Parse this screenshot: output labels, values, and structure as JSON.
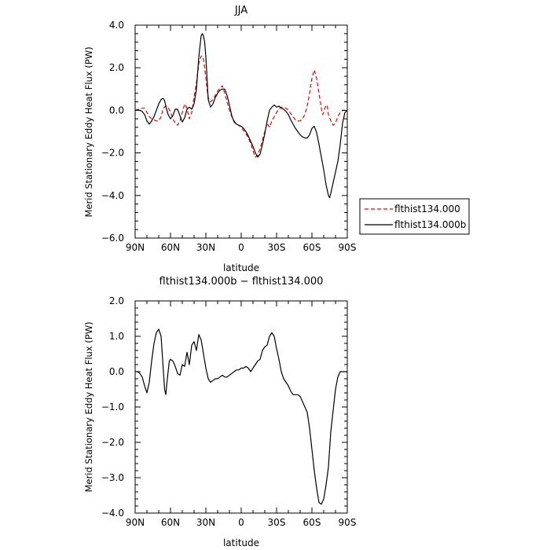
{
  "chart_data": [
    {
      "type": "line",
      "title": "JJA",
      "xlabel": "latitude",
      "ylabel": "Merid Stationary Eddy Heat Flux (PW)",
      "xlim": [
        90,
        -90
      ],
      "ylim": [
        -6,
        4
      ],
      "x_ticks": [
        90,
        60,
        30,
        0,
        -30,
        -60,
        -90
      ],
      "x_tick_labels": [
        "90N",
        "60N",
        "30N",
        "0",
        "30S",
        "60S",
        "90S"
      ],
      "y_ticks": [
        4,
        2,
        0,
        -2,
        -4,
        -6
      ],
      "y_tick_labels": [
        "4.0",
        "2.0",
        "0.0",
        "−2.0",
        "−4.0",
        "−6.0"
      ],
      "legend_position": "right",
      "series": [
        {
          "name": "flthist134.000",
          "color": "#ff0000",
          "dash": "dashed",
          "x": [
            90,
            87,
            84,
            82,
            80,
            78,
            76,
            74,
            72,
            70,
            68,
            66,
            64,
            62,
            60,
            58,
            56,
            54,
            52,
            50,
            48,
            46,
            44,
            42,
            40,
            38,
            36,
            34,
            33,
            32,
            31,
            30,
            29,
            28,
            26,
            24,
            22,
            20,
            18,
            16,
            14,
            12,
            10,
            8,
            6,
            4,
            2,
            0,
            -2,
            -4,
            -6,
            -8,
            -10,
            -12,
            -14,
            -16,
            -18,
            -20,
            -22,
            -24,
            -26,
            -28,
            -30,
            -32,
            -34,
            -36,
            -38,
            -40,
            -42,
            -44,
            -46,
            -48,
            -50,
            -52,
            -54,
            -56,
            -58,
            -60,
            -62,
            -64,
            -66,
            -68,
            -69,
            -70,
            -71,
            -72,
            -73,
            -74,
            -76,
            -78,
            -80,
            -82,
            -84,
            -86,
            -88,
            -90
          ],
          "y": [
            0,
            0.05,
            0.1,
            0.1,
            -0.1,
            -0.3,
            -0.4,
            -0.45,
            -0.5,
            -0.5,
            -0.3,
            0.1,
            0.2,
            0.15,
            -0.1,
            -0.4,
            -0.6,
            -0.7,
            -0.5,
            -0.1,
            0.3,
            0.1,
            -0.4,
            -0.1,
            0.6,
            1.3,
            2.2,
            2.55,
            2.55,
            2.4,
            2.0,
            1.5,
            1.0,
            0.6,
            0.4,
            0.5,
            0.7,
            0.9,
            1.05,
            1.15,
            0.8,
            0.4,
            0.0,
            -0.3,
            -0.5,
            -0.65,
            -0.7,
            -0.8,
            -0.95,
            -1.1,
            -1.3,
            -1.55,
            -1.9,
            -2.2,
            -2.1,
            -1.8,
            -1.4,
            -1.0,
            -0.6,
            -0.8,
            -0.5,
            -0.3,
            -0.1,
            0.05,
            0.15,
            0.15,
            0.1,
            0,
            -0.15,
            -0.3,
            -0.45,
            -0.5,
            -0.5,
            -0.4,
            -0.2,
            0.2,
            0.8,
            1.5,
            1.9,
            1.5,
            0.8,
            0.1,
            -0.2,
            -0.1,
            0.1,
            0.25,
            0.2,
            -0.2,
            -0.5,
            -0.7,
            -0.6,
            -0.3,
            -0.1,
            0,
            0,
            0
          ]
        },
        {
          "name": "flthist134.000b",
          "color": "#000000",
          "dash": "solid",
          "x": [
            90,
            88,
            86,
            84,
            82,
            80,
            78,
            76,
            74,
            72,
            70,
            68,
            67,
            66,
            65,
            64,
            62,
            60,
            58,
            56,
            54,
            52,
            50,
            48,
            46,
            44,
            42,
            40,
            38,
            36,
            34,
            33,
            32,
            31,
            30,
            29,
            28,
            26,
            24,
            22,
            20,
            18,
            16,
            14,
            12,
            10,
            8,
            6,
            4,
            2,
            0,
            -2,
            -4,
            -6,
            -8,
            -10,
            -12,
            -14,
            -16,
            -18,
            -20,
            -22,
            -24,
            -26,
            -28,
            -30,
            -32,
            -34,
            -36,
            -38,
            -40,
            -42,
            -44,
            -46,
            -48,
            -50,
            -52,
            -54,
            -56,
            -58,
            -60,
            -62,
            -64,
            -66,
            -68,
            -70,
            -72,
            -74,
            -75,
            -76,
            -78,
            -80,
            -82,
            -84,
            -86,
            -88,
            -90
          ],
          "y": [
            0,
            0,
            0,
            -0.05,
            -0.2,
            -0.5,
            -0.65,
            -0.5,
            -0.3,
            0,
            0.3,
            0.5,
            0.55,
            0.55,
            0.45,
            0.2,
            -0.2,
            -0.4,
            -0.25,
            0.05,
            0.05,
            -0.25,
            -0.55,
            -0.35,
            0.05,
            0.15,
            0.05,
            0.3,
            1.0,
            2.5,
            3.5,
            3.6,
            3.5,
            3.2,
            2.5,
            1.5,
            0.5,
            0.15,
            0.3,
            0.6,
            0.8,
            0.95,
            1.0,
            1.0,
            0.7,
            0.25,
            -0.25,
            -0.55,
            -0.65,
            -0.7,
            -0.75,
            -0.85,
            -1.0,
            -1.2,
            -1.45,
            -1.7,
            -2.0,
            -2.2,
            -2.05,
            -1.6,
            -1.1,
            -0.5,
            0.0,
            0.15,
            0.25,
            0.15,
            0.2,
            0.1,
            0.05,
            -0.05,
            -0.2,
            -0.45,
            -0.65,
            -0.85,
            -1.0,
            -1.15,
            -1.25,
            -1.3,
            -1.3,
            -1.15,
            -0.85,
            -0.75,
            -1.05,
            -1.6,
            -2.2,
            -2.8,
            -3.5,
            -4.0,
            -4.1,
            -3.9,
            -3.4,
            -2.9,
            -2.4,
            -1.6,
            -0.6,
            -0.1,
            0
          ]
        }
      ]
    },
    {
      "type": "line",
      "title": "flthist134.000b − flthist134.000",
      "xlabel": "latitude",
      "ylabel": "Merid Stationary Eddy Heat Flux (PW)",
      "xlim": [
        90,
        -90
      ],
      "ylim": [
        -4,
        2
      ],
      "x_ticks": [
        90,
        60,
        30,
        0,
        -30,
        -60,
        -90
      ],
      "x_tick_labels": [
        "90N",
        "60N",
        "30N",
        "0",
        "30S",
        "60S",
        "90S"
      ],
      "y_ticks": [
        2,
        1,
        0,
        -1,
        -2,
        -3,
        -4
      ],
      "y_tick_labels": [
        "2.0",
        "1.0",
        "0.0",
        "−1.0",
        "−2.0",
        "−3.0",
        "−4.0"
      ],
      "series": [
        {
          "name": "",
          "color": "#000000",
          "dash": "solid",
          "x": [
            90,
            88,
            86,
            84,
            82,
            80,
            78,
            76,
            74,
            72,
            70,
            68,
            67,
            66,
            65,
            64,
            63,
            62,
            61,
            60,
            58,
            56,
            54,
            52,
            50,
            48,
            46,
            44,
            42,
            40,
            38,
            36,
            34,
            33,
            32,
            31,
            30,
            29,
            28,
            26,
            24,
            22,
            20,
            18,
            16,
            14,
            12,
            10,
            8,
            6,
            4,
            2,
            0,
            -2,
            -4,
            -6,
            -8,
            -10,
            -12,
            -14,
            -16,
            -18,
            -20,
            -22,
            -24,
            -26,
            -28,
            -30,
            -32,
            -34,
            -36,
            -38,
            -40,
            -42,
            -44,
            -46,
            -48,
            -50,
            -52,
            -54,
            -56,
            -58,
            -60,
            -62,
            -64,
            -66,
            -68,
            -70,
            -72,
            -74,
            -75,
            -76,
            -78,
            -80,
            -82,
            -84,
            -86,
            -88,
            -90
          ],
          "y": [
            0,
            0,
            -0.05,
            -0.15,
            -0.4,
            -0.6,
            -0.3,
            0.3,
            0.8,
            1.1,
            1.2,
            1.0,
            0.5,
            0.0,
            -0.5,
            -0.65,
            -0.3,
            0.0,
            0.3,
            0.35,
            0.3,
            0.15,
            -0.05,
            -0.1,
            0.2,
            0.15,
            0.55,
            0.2,
            0.75,
            0.85,
            0.6,
            1.05,
            0.9,
            0.7,
            0.5,
            0.3,
            0.1,
            -0.05,
            -0.2,
            -0.3,
            -0.25,
            -0.2,
            -0.2,
            -0.15,
            -0.1,
            -0.15,
            -0.15,
            -0.1,
            -0.05,
            0,
            0.05,
            0.05,
            0.1,
            0.1,
            0.15,
            0.1,
            0,
            0.1,
            0.2,
            0.3,
            0.35,
            0.6,
            0.7,
            0.75,
            1.0,
            1.1,
            1.0,
            0.65,
            0.35,
            0.0,
            -0.2,
            -0.3,
            -0.4,
            -0.55,
            -0.65,
            -0.65,
            -0.65,
            -0.7,
            -0.85,
            -1.0,
            -1.15,
            -1.6,
            -2.2,
            -2.8,
            -3.3,
            -3.7,
            -3.75,
            -3.6,
            -3.2,
            -2.7,
            -2.2,
            -1.7,
            -1.1,
            -0.5,
            -0.15,
            0,
            0,
            0,
            0
          ]
        }
      ]
    }
  ]
}
